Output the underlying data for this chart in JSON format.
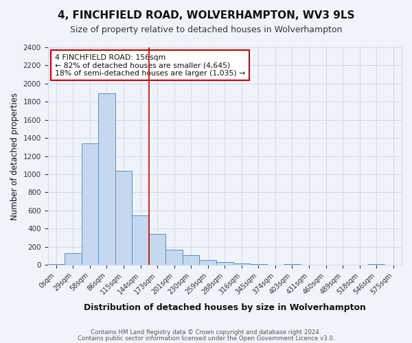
{
  "title": "4, FINCHFIELD ROAD, WOLVERHAMPTON, WV3 9LS",
  "subtitle": "Size of property relative to detached houses in Wolverhampton",
  "xlabel": "Distribution of detached houses by size in Wolverhampton",
  "ylabel": "Number of detached properties",
  "categories": [
    "0sqm",
    "29sqm",
    "58sqm",
    "86sqm",
    "115sqm",
    "144sqm",
    "173sqm",
    "201sqm",
    "230sqm",
    "259sqm",
    "288sqm",
    "316sqm",
    "345sqm",
    "374sqm",
    "403sqm",
    "431sqm",
    "460sqm",
    "489sqm",
    "518sqm",
    "546sqm",
    "575sqm"
  ],
  "values": [
    10,
    130,
    1340,
    1890,
    1040,
    545,
    340,
    165,
    110,
    58,
    28,
    18,
    12,
    0,
    8,
    0,
    0,
    0,
    0,
    12,
    0
  ],
  "bar_color": "#c5d8f0",
  "bar_edge_color": "#5a8fc0",
  "grid_color": "#d0d8e8",
  "background_color": "#f0f4fa",
  "property_bin_index": 5,
  "annotation_text": "4 FINCHFIELD ROAD: 156sqm\n← 82% of detached houses are smaller (4,645)\n18% of semi-detached houses are larger (1,035) →",
  "annotation_box_color": "#ffffff",
  "annotation_box_edge": "#cc0000",
  "vline_color": "#cc0000",
  "footer1": "Contains HM Land Registry data © Crown copyright and database right 2024.",
  "footer2": "Contains public sector information licensed under the Open Government Licence v3.0.",
  "ylim": [
    0,
    2400
  ],
  "yticks": [
    0,
    200,
    400,
    600,
    800,
    1000,
    1200,
    1400,
    1600,
    1800,
    2000,
    2200,
    2400
  ]
}
